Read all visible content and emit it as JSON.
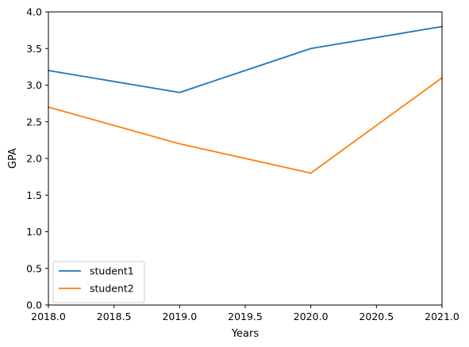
{
  "chart_data": {
    "type": "line",
    "xlabel": "Years",
    "ylabel": "GPA",
    "xlim": [
      2018.0,
      2021.0
    ],
    "ylim": [
      0.0,
      4.0
    ],
    "xticks": [
      "2018.0",
      "2018.5",
      "2019.0",
      "2019.5",
      "2020.0",
      "2020.5",
      "2021.0"
    ],
    "yticks": [
      "0.0",
      "0.5",
      "1.0",
      "1.5",
      "2.0",
      "2.5",
      "3.0",
      "3.5",
      "4.0"
    ],
    "x": [
      2018,
      2019,
      2020,
      2021
    ],
    "series": [
      {
        "name": "student1",
        "color": "#1f77b4",
        "values": [
          3.2,
          2.9,
          3.5,
          3.8
        ]
      },
      {
        "name": "student2",
        "color": "#ff7f0e",
        "values": [
          2.7,
          2.2,
          1.8,
          3.1
        ]
      }
    ],
    "legend": "lower-left",
    "grid": false
  }
}
